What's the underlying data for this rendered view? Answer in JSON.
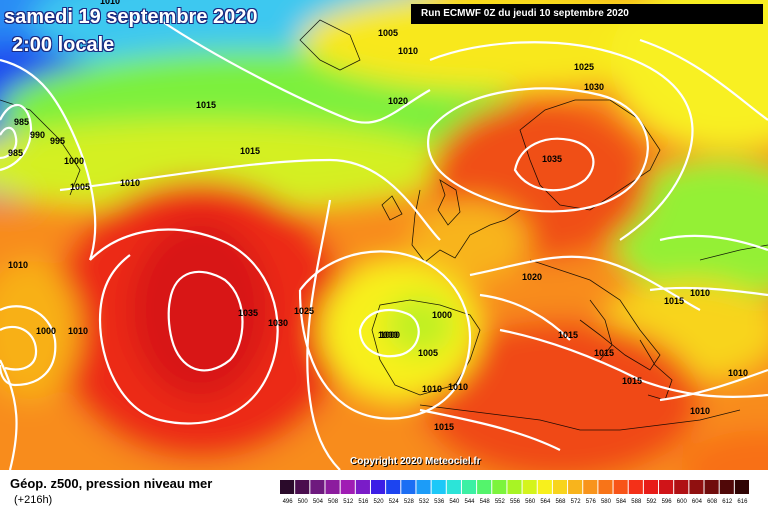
{
  "header": {
    "date": "samedi 19 septembre 2020",
    "time": "2:00 locale",
    "run": "Run ECMWF 0Z du jeudi 10 septembre 2020"
  },
  "copyright": "Copyright 2020 Meteociel.fr",
  "legend": {
    "title": "Géop. z500, pression niveau mer",
    "subtitle": "(+216h)",
    "scale_values": [
      "496",
      "500",
      "504",
      "508",
      "512",
      "516",
      "520",
      "524",
      "528",
      "532",
      "536",
      "540",
      "544",
      "548",
      "552",
      "556",
      "560",
      "564",
      "568",
      "572",
      "576",
      "580",
      "584",
      "588",
      "592",
      "596",
      "600",
      "604",
      "608",
      "612",
      "616"
    ],
    "scale_colors": [
      "#2a0a2a",
      "#4a0e4e",
      "#6e1a7e",
      "#8c1c9e",
      "#a01cb4",
      "#7a1cc8",
      "#3c1ee6",
      "#1c44f0",
      "#1c6ef4",
      "#1c9cf8",
      "#1cc8f8",
      "#2ce4d8",
      "#3cf0a4",
      "#54f46c",
      "#7cf43c",
      "#a8f424",
      "#d4f41c",
      "#f8f01c",
      "#f8d41c",
      "#f8b41c",
      "#f8941c",
      "#f87418",
      "#f85418",
      "#f43018",
      "#e81c18",
      "#d01418",
      "#b01014",
      "#901010",
      "#700c0c",
      "#500808",
      "#300404"
    ]
  },
  "pressure_labels": [
    "1010",
    "1005",
    "1010",
    "985",
    "990",
    "995",
    "985",
    "1000",
    "1005",
    "1010",
    "1015",
    "1015",
    "1020",
    "1025",
    "1030",
    "1035",
    "1010",
    "1010",
    "1000",
    "1000",
    "1035",
    "1030",
    "1025",
    "1000",
    "1000",
    "1005",
    "1010",
    "1010",
    "1015",
    "1020",
    "1015",
    "1015",
    "1015",
    "1010",
    "1015",
    "1010",
    "1010"
  ],
  "colors": {
    "contour": "#ffffff",
    "coast": "#000000"
  }
}
